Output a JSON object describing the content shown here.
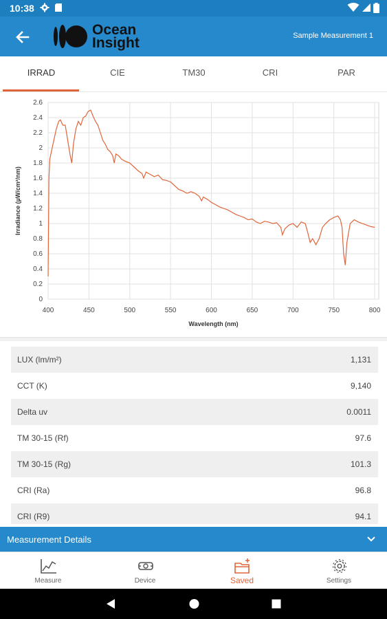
{
  "status_bar": {
    "time": "10:38"
  },
  "app_bar": {
    "logo_line1": "Ocean",
    "logo_line2": "Insight",
    "title": "Sample Measurement 1"
  },
  "tabs": [
    {
      "label": "IRRAD",
      "active": true
    },
    {
      "label": "CIE"
    },
    {
      "label": "TM30"
    },
    {
      "label": "CRI"
    },
    {
      "label": "PAR"
    }
  ],
  "chart_data": {
    "type": "line",
    "xlabel": "Wavelength (nm)",
    "ylabel": "Irradiance (µW/cm²/nm)",
    "xlim": [
      400,
      805
    ],
    "ylim": [
      0,
      2.6
    ],
    "xticks": [
      400,
      450,
      500,
      550,
      600,
      650,
      700,
      750,
      800
    ],
    "yticks": [
      0,
      0.2,
      0.4,
      0.6,
      0.8,
      1,
      1.2,
      1.4,
      1.6,
      1.8,
      2,
      2.2,
      2.4,
      2.6
    ],
    "grid": true,
    "color": "#e0653a",
    "series": [
      {
        "x": [
          400,
          401,
          402,
          405,
          408,
          410,
          413,
          415,
          418,
          421,
          424,
          427,
          429,
          431,
          434,
          437,
          440,
          443,
          446,
          449,
          452,
          455,
          458,
          461,
          464,
          467,
          470,
          473,
          476,
          479,
          481,
          483,
          486,
          490,
          495,
          500,
          505,
          510,
          515,
          517,
          520,
          525,
          530,
          535,
          540,
          545,
          550,
          555,
          560,
          565,
          570,
          575,
          580,
          585,
          588,
          590,
          595,
          600,
          605,
          610,
          615,
          620,
          625,
          630,
          635,
          640,
          645,
          650,
          655,
          660,
          665,
          670,
          675,
          680,
          685,
          687,
          690,
          695,
          700,
          705,
          710,
          715,
          718,
          721,
          724,
          728,
          732,
          736,
          740,
          745,
          750,
          755,
          758,
          760,
          762,
          764,
          766,
          770,
          775,
          780,
          785,
          790,
          795,
          800
        ],
        "y": [
          0.3,
          1.6,
          1.85,
          2.0,
          2.15,
          2.25,
          2.35,
          2.37,
          2.3,
          2.3,
          2.1,
          1.9,
          1.8,
          2.05,
          2.25,
          2.35,
          2.3,
          2.4,
          2.42,
          2.48,
          2.5,
          2.42,
          2.35,
          2.3,
          2.2,
          2.1,
          2.05,
          1.98,
          1.95,
          1.9,
          1.8,
          1.92,
          1.9,
          1.85,
          1.82,
          1.8,
          1.75,
          1.7,
          1.66,
          1.6,
          1.68,
          1.65,
          1.62,
          1.64,
          1.58,
          1.57,
          1.55,
          1.5,
          1.45,
          1.43,
          1.4,
          1.42,
          1.4,
          1.36,
          1.3,
          1.35,
          1.32,
          1.28,
          1.25,
          1.22,
          1.2,
          1.18,
          1.15,
          1.12,
          1.1,
          1.08,
          1.05,
          1.06,
          1.02,
          1.0,
          1.03,
          1.02,
          1.0,
          1.01,
          0.95,
          0.85,
          0.93,
          0.98,
          1.0,
          0.95,
          1.02,
          1.0,
          0.88,
          0.75,
          0.8,
          0.72,
          0.8,
          0.95,
          1.0,
          1.05,
          1.08,
          1.1,
          1.05,
          0.95,
          0.6,
          0.45,
          0.75,
          1.0,
          1.05,
          1.02,
          1.0,
          0.98,
          0.96,
          0.95
        ]
      }
    ]
  },
  "metrics": [
    {
      "label": "LUX (lm/m²)",
      "value": "1,131"
    },
    {
      "label": "CCT (K)",
      "value": "9,140"
    },
    {
      "label": "Delta uv",
      "value": "0.0011"
    },
    {
      "label": "TM 30-15 (Rf)",
      "value": "97.6"
    },
    {
      "label": "TM 30-15 (Rg)",
      "value": "101.3"
    },
    {
      "label": "CRI (Ra)",
      "value": "96.8"
    },
    {
      "label": "CRI (R9)",
      "value": "94.1"
    }
  ],
  "details": {
    "label": "Measurement Details"
  },
  "bottom_nav": [
    {
      "label": "Measure",
      "icon": "chart-line-icon"
    },
    {
      "label": "Device",
      "icon": "device-icon"
    },
    {
      "label": "Saved",
      "icon": "folder-add-icon",
      "active": true
    },
    {
      "label": "Settings",
      "icon": "gear-icon"
    }
  ],
  "colors": {
    "status_bar": "#1d7fc0",
    "app_bar": "#2589cc",
    "accent": "#e0653a",
    "row_alt": "#efefef"
  }
}
